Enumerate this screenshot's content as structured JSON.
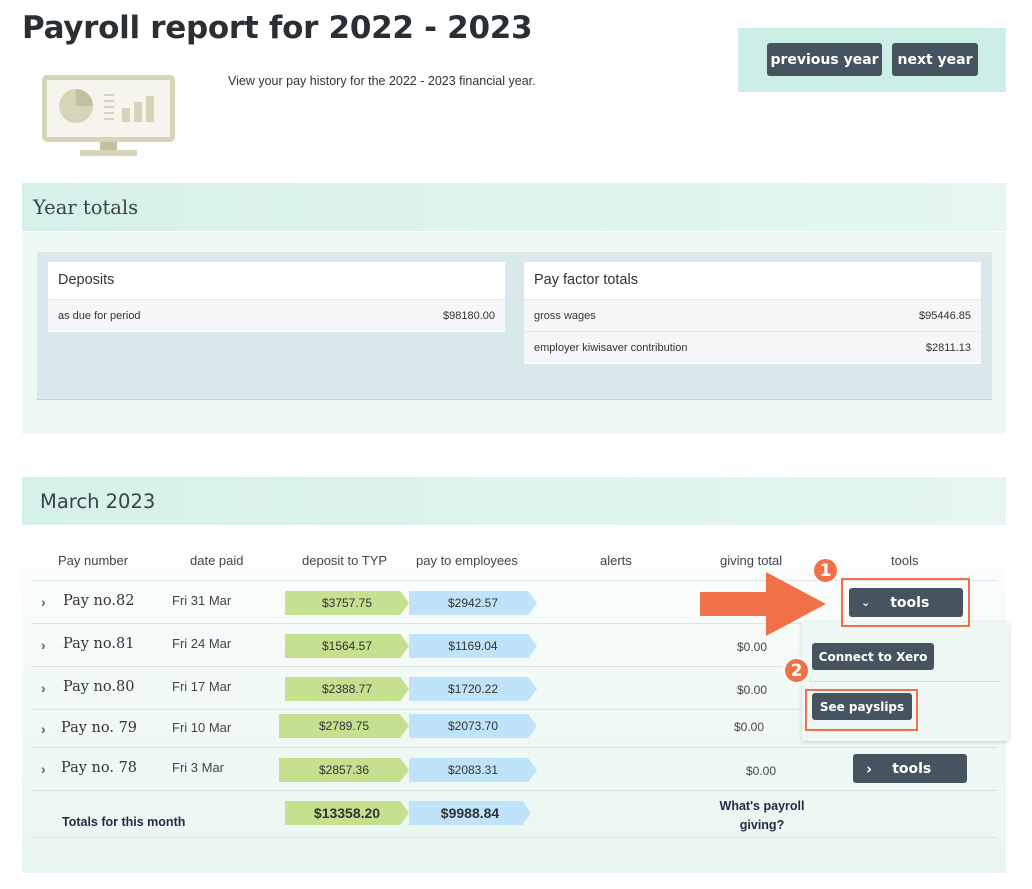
{
  "header": {
    "title": "Payroll report for 2022 - 2023",
    "subtitle": "View your pay history for the 2022 - 2023 financial year.",
    "prev_label": "previous year",
    "next_label": "next year",
    "illustration_icon": "monitor-chart-icon"
  },
  "year_totals": {
    "title": "Year totals",
    "deposits": {
      "title": "Deposits",
      "rows": [
        {
          "label": "as due for period",
          "value": "$98180.00"
        }
      ]
    },
    "pay_factors": {
      "title": "Pay factor totals",
      "rows": [
        {
          "label": "gross wages",
          "value": "$95446.85"
        },
        {
          "label": "employer kiwisaver contribution",
          "value": "$2811.13"
        }
      ]
    }
  },
  "month": {
    "title": "March 2023",
    "columns": [
      "Pay number",
      "date paid",
      "deposit to TYP",
      "pay to employees",
      "alerts",
      "giving total",
      "tools"
    ],
    "rows": [
      {
        "pay": "Pay no.82",
        "date": "Fri 31 Mar",
        "deposit": "$3757.75",
        "employees": "$2942.57",
        "giving": "",
        "tools": "tools",
        "expanded": true
      },
      {
        "pay": "Pay no.81",
        "date": "Fri 24 Mar",
        "deposit": "$1564.57",
        "employees": "$1169.04",
        "giving": "$0.00"
      },
      {
        "pay": "Pay no.80",
        "date": "Fri 17 Mar",
        "deposit": "$2388.77",
        "employees": "$1720.22",
        "giving": "$0.00"
      },
      {
        "pay": "Pay no. 79",
        "date": "Fri 10 Mar",
        "deposit": "$2789.75",
        "employees": "$2073.70",
        "giving": "$0.00"
      },
      {
        "pay": "Pay no. 78",
        "date": "Fri 3 Mar",
        "deposit": "$2857.36",
        "employees": "$2083.31",
        "giving": "$0.00",
        "tools": "tools"
      }
    ],
    "totals": {
      "label": "Totals for this month",
      "deposit": "$13358.20",
      "employees": "$9988.84",
      "giving_link": "What's payroll giving?"
    },
    "tools_menu": {
      "connect": "Connect to Xero",
      "payslips": "See payslips"
    }
  },
  "annotations": {
    "step1": "1",
    "step2": "2",
    "accent": "#f07148"
  }
}
